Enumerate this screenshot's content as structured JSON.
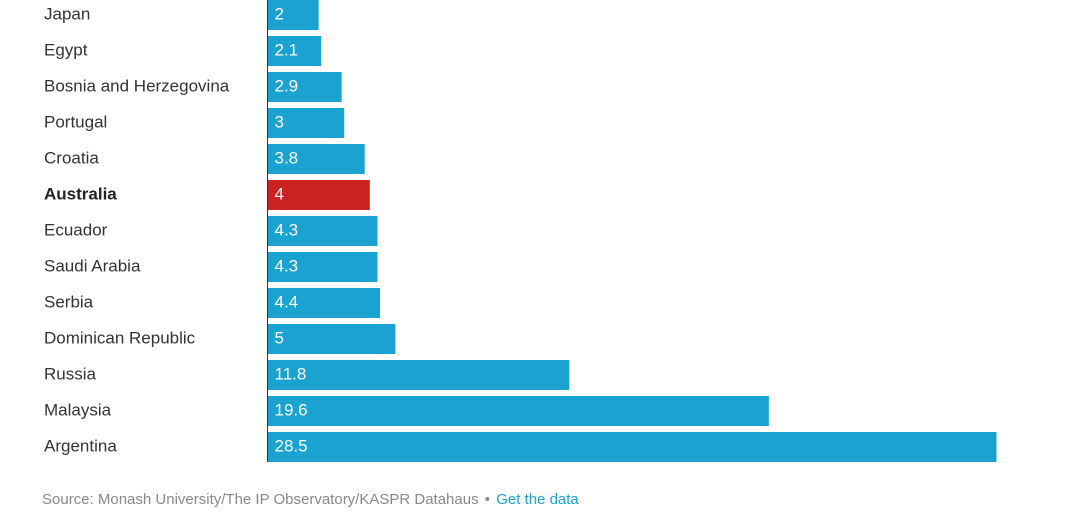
{
  "chart_data": {
    "type": "bar",
    "orientation": "horizontal",
    "categories": [
      "Japan",
      "Egypt",
      "Bosnia and Herzegovina",
      "Portugal",
      "Croatia",
      "Australia",
      "Ecuador",
      "Saudi Arabia",
      "Serbia",
      "Dominican Republic",
      "Russia",
      "Malaysia",
      "Argentina"
    ],
    "values": [
      2,
      2.1,
      2.9,
      3,
      3.8,
      4,
      4.3,
      4.3,
      4.4,
      5,
      11.8,
      19.6,
      28.5
    ],
    "value_labels": [
      "2",
      "2.1",
      "2.9",
      "3",
      "3.8",
      "4",
      "4.3",
      "4.3",
      "4.4",
      "5",
      "11.8",
      "19.6",
      "28.5"
    ],
    "highlight": "Australia",
    "colors": {
      "bar": "#1aa3d1",
      "highlight": "#cc2222",
      "axis": "#333333"
    },
    "xlim": [
      0,
      28.5
    ],
    "grid": false,
    "legend": "none"
  },
  "footer": {
    "source_text": "Source: Monash University/The IP Observatory/KASPR Datahaus",
    "separator": "•",
    "link_text": "Get the data"
  }
}
